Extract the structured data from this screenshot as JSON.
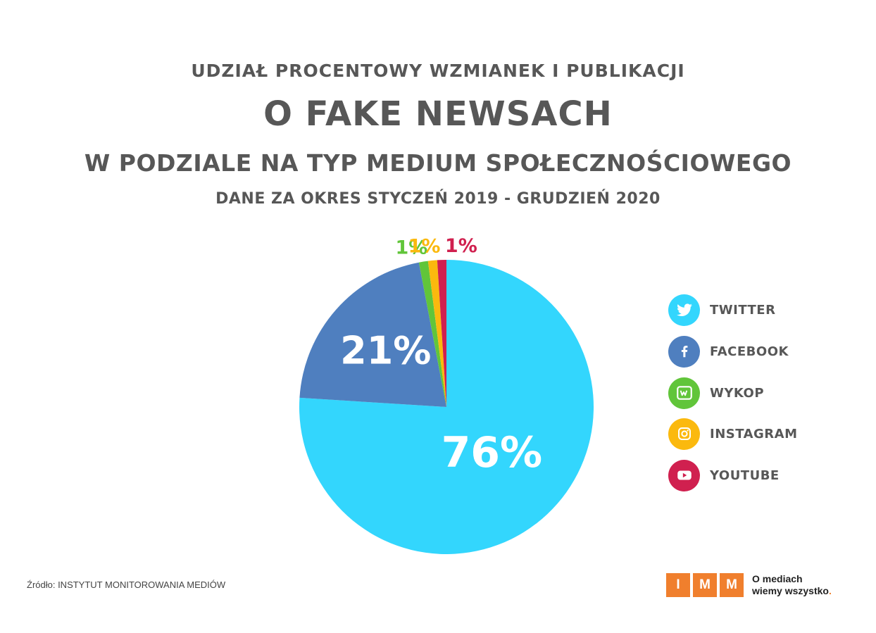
{
  "title": {
    "line1": "UDZIAŁ PROCENTOWY WZMIANEK I PUBLIKACJI",
    "line2": "O FAKE NEWSACH",
    "line3": "W PODZIALE NA TYP MEDIUM SPOŁECZNOŚCIOWEGO",
    "line4": "DANE ZA OKRES STYCZEŃ 2019 - GRUDZIEŃ 2020"
  },
  "chart_data": {
    "type": "pie",
    "title": "UDZIAŁ PROCENTOWY WZMIANEK I PUBLIKACJI O FAKE NEWSACH W PODZIALE NA TYP MEDIUM SPOŁECZNOŚCIOWEGO",
    "subtitle": "DANE ZA OKRES STYCZEŃ 2019 - GRUDZIEŃ 2020",
    "legend_position": "right",
    "slices": [
      {
        "name": "TWITTER",
        "value": 76,
        "label": "76%",
        "color": "#33d6fd",
        "icon": "twitter-bird-icon"
      },
      {
        "name": "FACEBOOK",
        "value": 21,
        "label": "21%",
        "color": "#4f7fbf",
        "icon": "facebook-f-icon"
      },
      {
        "name": "WYKOP",
        "value": 1,
        "label": "1%",
        "color": "#61c53a",
        "icon": "wykop-icon"
      },
      {
        "name": "INSTAGRAM",
        "value": 1,
        "label": "1%",
        "color": "#fbb90e",
        "icon": "instagram-camera-icon"
      },
      {
        "name": "YOUTUBE",
        "value": 1,
        "label": "1%",
        "color": "#d0204f",
        "icon": "youtube-play-icon"
      }
    ]
  },
  "footer": {
    "source": "Źródło: INSTYTUT MONITOROWANIA MEDIÓW",
    "logo_letters": [
      "I",
      "M",
      "M"
    ],
    "tagline_line1": "O mediach",
    "tagline_line2": "wiemy wszystko",
    "tagline_dot": ".",
    "logo_color": "#f07f2d"
  }
}
